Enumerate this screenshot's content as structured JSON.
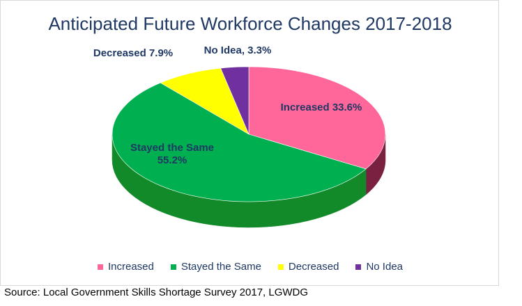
{
  "chart_data": {
    "type": "pie",
    "title": "Anticipated Future Workforce Changes 2017-2018",
    "categories": [
      "Increased",
      "Stayed the Same",
      "Decreased",
      "No Idea"
    ],
    "values": [
      33.6,
      55.2,
      7.9,
      3.3
    ],
    "unit": "%",
    "colors": [
      "#ff6699",
      "#00b050",
      "#ffff00",
      "#7030a0"
    ],
    "side_colors": [
      "#7a2040",
      "#138a2a",
      "#a6a600",
      "#3d1a5c"
    ],
    "data_labels": [
      {
        "line1": "Increased 33.6%",
        "line2": ""
      },
      {
        "line1": "Stayed the Same",
        "line2": "55.2%"
      },
      {
        "line1": "Decreased 7.9%",
        "line2": ""
      },
      {
        "line1": "No Idea, 3.3%",
        "line2": ""
      }
    ],
    "legend": {
      "position": "bottom",
      "entries": [
        "Increased",
        "Stayed the Same",
        "Decreased",
        "No Idea"
      ]
    },
    "style": "3d"
  },
  "source": "Source: Local Government Skills Shortage Survey 2017, LGWDG"
}
